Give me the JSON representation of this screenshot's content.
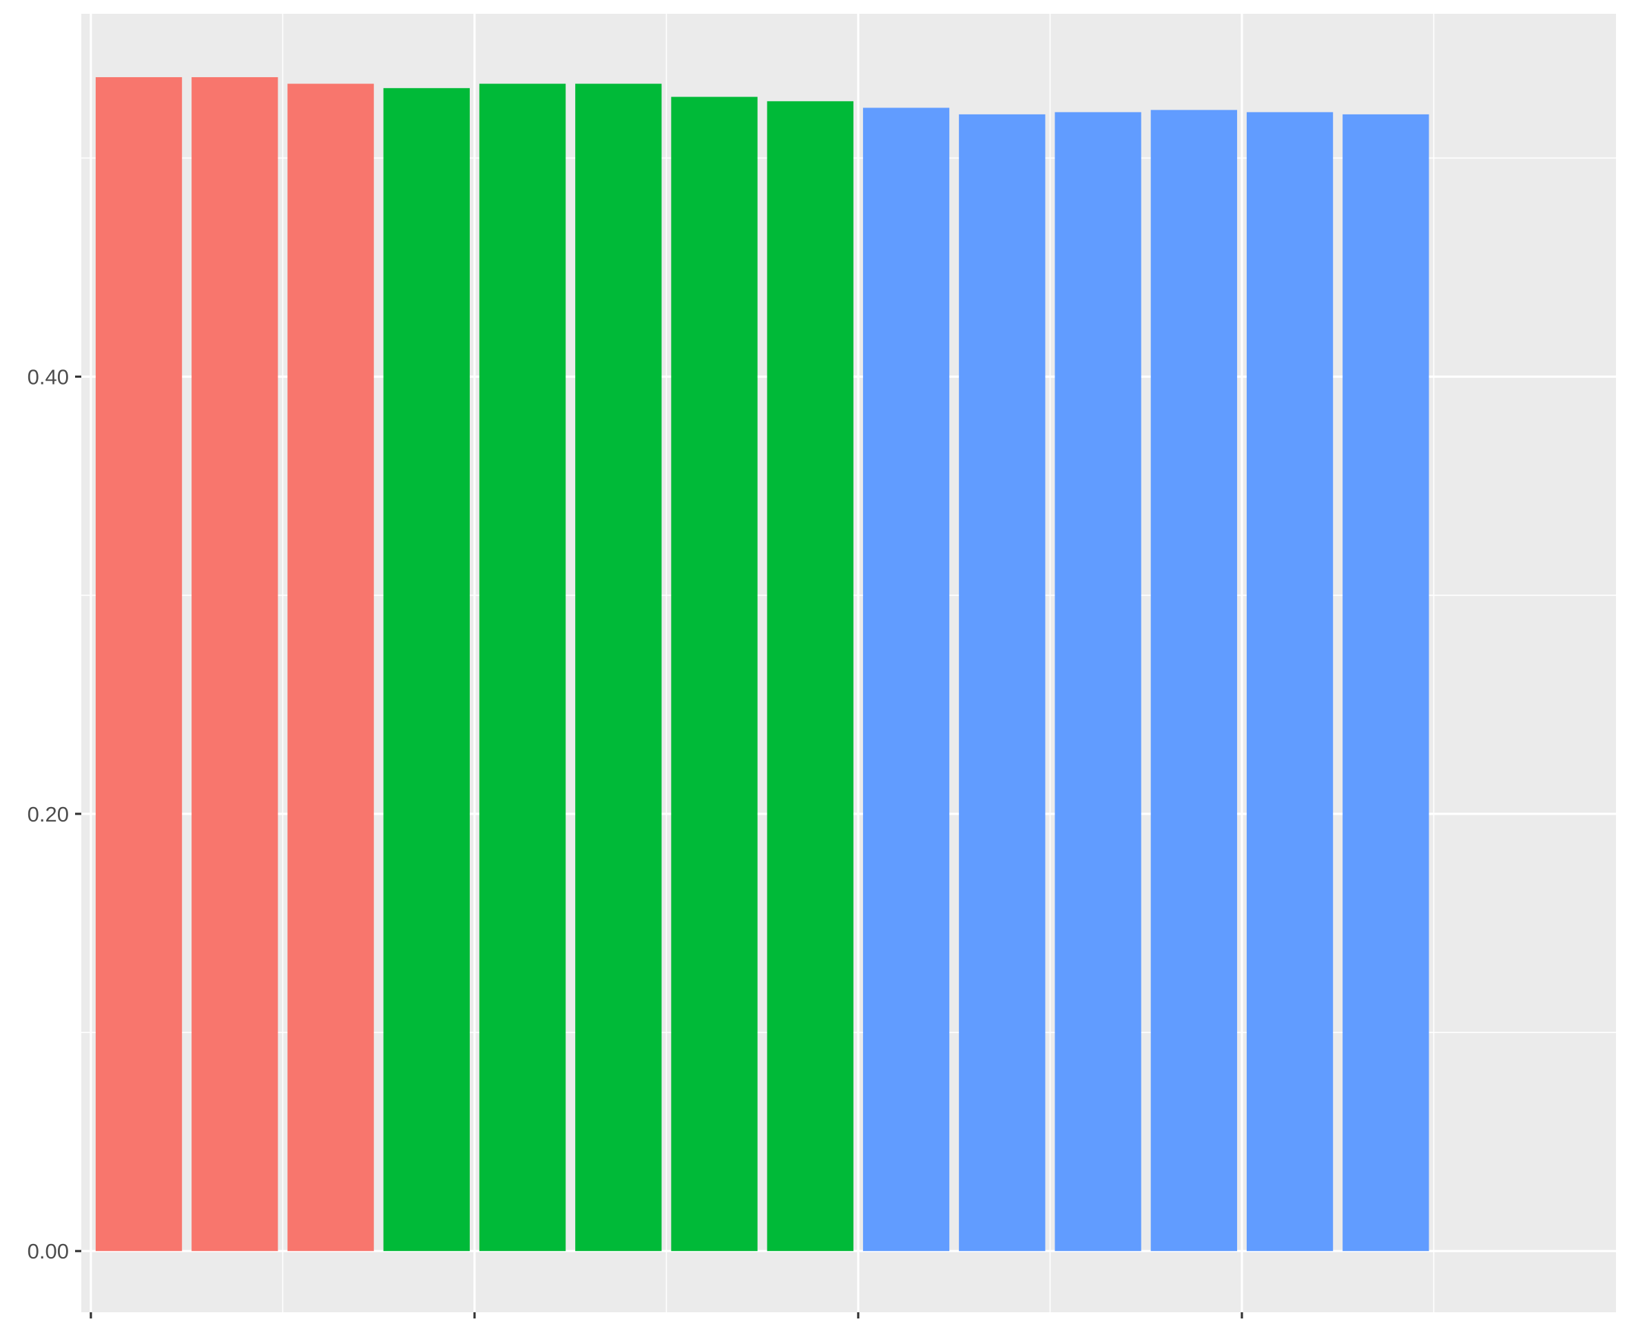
{
  "chart_data": {
    "type": "bar",
    "title": "",
    "xlabel": "",
    "ylabel": "",
    "ylim": [
      -0.028,
      0.566
    ],
    "xlim": [
      0.4,
      16.4
    ],
    "grid": true,
    "legend": "none",
    "y_ticks": [
      {
        "value": 0.0,
        "label": "0.00"
      },
      {
        "value": 0.2,
        "label": "0.20"
      },
      {
        "value": 0.4,
        "label": "0.40"
      }
    ],
    "y_minor_gridlines": [
      0.1,
      0.3,
      0.5
    ],
    "x_major_gridlines": [
      0.5,
      4.5,
      8.5,
      12.5
    ],
    "x_minor_gridlines": [
      2.5,
      6.5,
      10.5,
      14.5
    ],
    "x_tick_positions": [
      0.5,
      4.5,
      8.5,
      12.5
    ],
    "bar_width": 0.9,
    "bars": [
      {
        "x": 1,
        "value": 0.537,
        "group": "red"
      },
      {
        "x": 2,
        "value": 0.537,
        "group": "red"
      },
      {
        "x": 3,
        "value": 0.534,
        "group": "red"
      },
      {
        "x": 4,
        "value": 0.532,
        "group": "green"
      },
      {
        "x": 5,
        "value": 0.534,
        "group": "green"
      },
      {
        "x": 6,
        "value": 0.534,
        "group": "green"
      },
      {
        "x": 7,
        "value": 0.528,
        "group": "green"
      },
      {
        "x": 8,
        "value": 0.526,
        "group": "green"
      },
      {
        "x": 9,
        "value": 0.523,
        "group": "blue"
      },
      {
        "x": 10,
        "value": 0.52,
        "group": "blue"
      },
      {
        "x": 11,
        "value": 0.521,
        "group": "blue"
      },
      {
        "x": 12,
        "value": 0.522,
        "group": "blue"
      },
      {
        "x": 13,
        "value": 0.521,
        "group": "blue"
      },
      {
        "x": 14,
        "value": 0.52,
        "group": "blue"
      }
    ],
    "colors": {
      "red": "#F8766D",
      "green": "#00BA38",
      "blue": "#619CFF",
      "panel_background": "#EBEBEB",
      "gridline": "#FFFFFF",
      "axis_tick": "#333333",
      "tick_label": "#4D4D4D"
    }
  }
}
